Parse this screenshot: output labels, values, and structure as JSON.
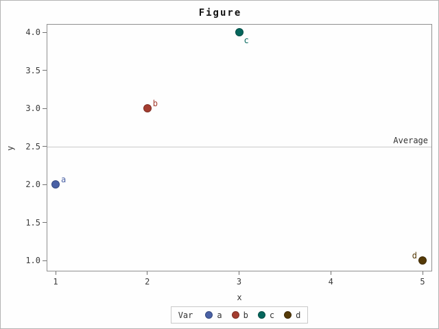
{
  "chart_data": {
    "type": "scatter",
    "title": "Figure",
    "xlabel": "x",
    "ylabel": "y",
    "xlim": [
      1,
      5
    ],
    "ylim": [
      1.0,
      4.0
    ],
    "grid": false,
    "x_ticks": [
      {
        "value": 1,
        "label": "1"
      },
      {
        "value": 2,
        "label": "2"
      },
      {
        "value": 3,
        "label": "3"
      },
      {
        "value": 4,
        "label": "4"
      },
      {
        "value": 5,
        "label": "5"
      }
    ],
    "y_ticks": [
      {
        "value": 4.0,
        "label": "4.0"
      },
      {
        "value": 3.5,
        "label": "3.5"
      },
      {
        "value": 3.0,
        "label": "3.0"
      },
      {
        "value": 2.5,
        "label": "2.5"
      },
      {
        "value": 2.0,
        "label": "2.0"
      },
      {
        "value": 1.5,
        "label": "1.5"
      },
      {
        "value": 1.0,
        "label": "1.0"
      }
    ],
    "points": [
      {
        "label": "a",
        "x": 1,
        "y": 2,
        "fill": "#4a61a5",
        "edge": "#35497f",
        "label_pos": "tr"
      },
      {
        "label": "b",
        "x": 2,
        "y": 3,
        "fill": "#a43d30",
        "edge": "#7d2d23",
        "label_pos": "tr"
      },
      {
        "label": "c",
        "x": 3,
        "y": 4,
        "fill": "#04665c",
        "edge": "#034d45",
        "label_pos": "br"
      },
      {
        "label": "d",
        "x": 5,
        "y": 1,
        "fill": "#553a07",
        "edge": "#3e2a05",
        "label_pos": "tl"
      }
    ],
    "refline": {
      "y": 2.5,
      "label": "Average",
      "color": "#c9c9c9"
    },
    "legend": {
      "title": "Var",
      "position": "bottom-center",
      "entries": [
        {
          "label": "a",
          "fill": "#4a61a5",
          "edge": "#35497f"
        },
        {
          "label": "b",
          "fill": "#a43d30",
          "edge": "#7d2d23"
        },
        {
          "label": "c",
          "fill": "#04665c",
          "edge": "#034d45"
        },
        {
          "label": "d",
          "fill": "#553a07",
          "edge": "#3e2a05"
        }
      ]
    }
  }
}
